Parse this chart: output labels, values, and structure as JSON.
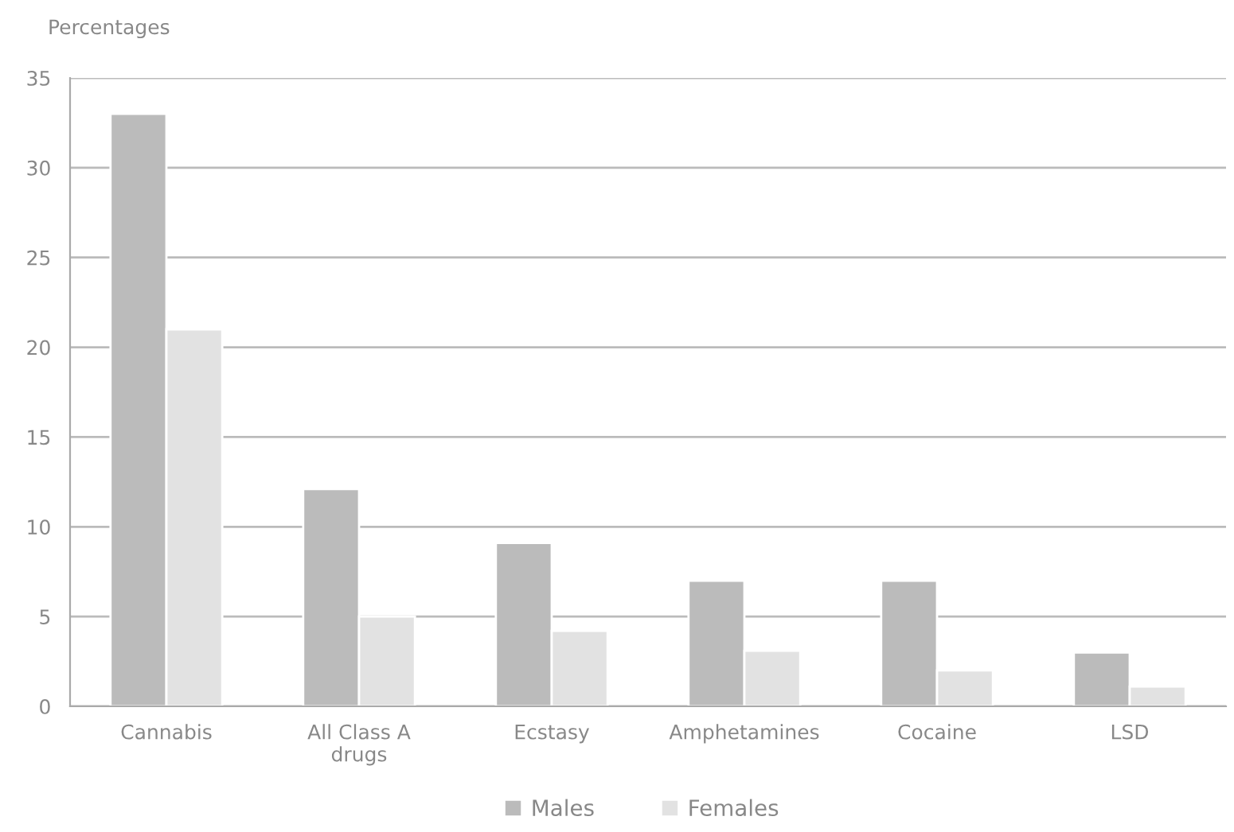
{
  "chart_data": {
    "type": "bar",
    "ylabel": "Percentages",
    "categories": [
      "Cannabis",
      "All Class A\ndrugs",
      "Ecstasy",
      "Amphetamines",
      "Cocaine",
      "LSD"
    ],
    "series": [
      {
        "name": "Males",
        "color": "#bbbbbb",
        "values": [
          33,
          12.1,
          9.1,
          7,
          7,
          3
        ]
      },
      {
        "name": "Females",
        "color": "#e2e2e2",
        "values": [
          21,
          5,
          4.2,
          3.1,
          2,
          1.1
        ]
      }
    ],
    "ylim": [
      0,
      35
    ],
    "yticks": [
      0,
      5,
      10,
      15,
      20,
      25,
      30,
      35
    ],
    "grid": "y",
    "legend": "bottom"
  }
}
